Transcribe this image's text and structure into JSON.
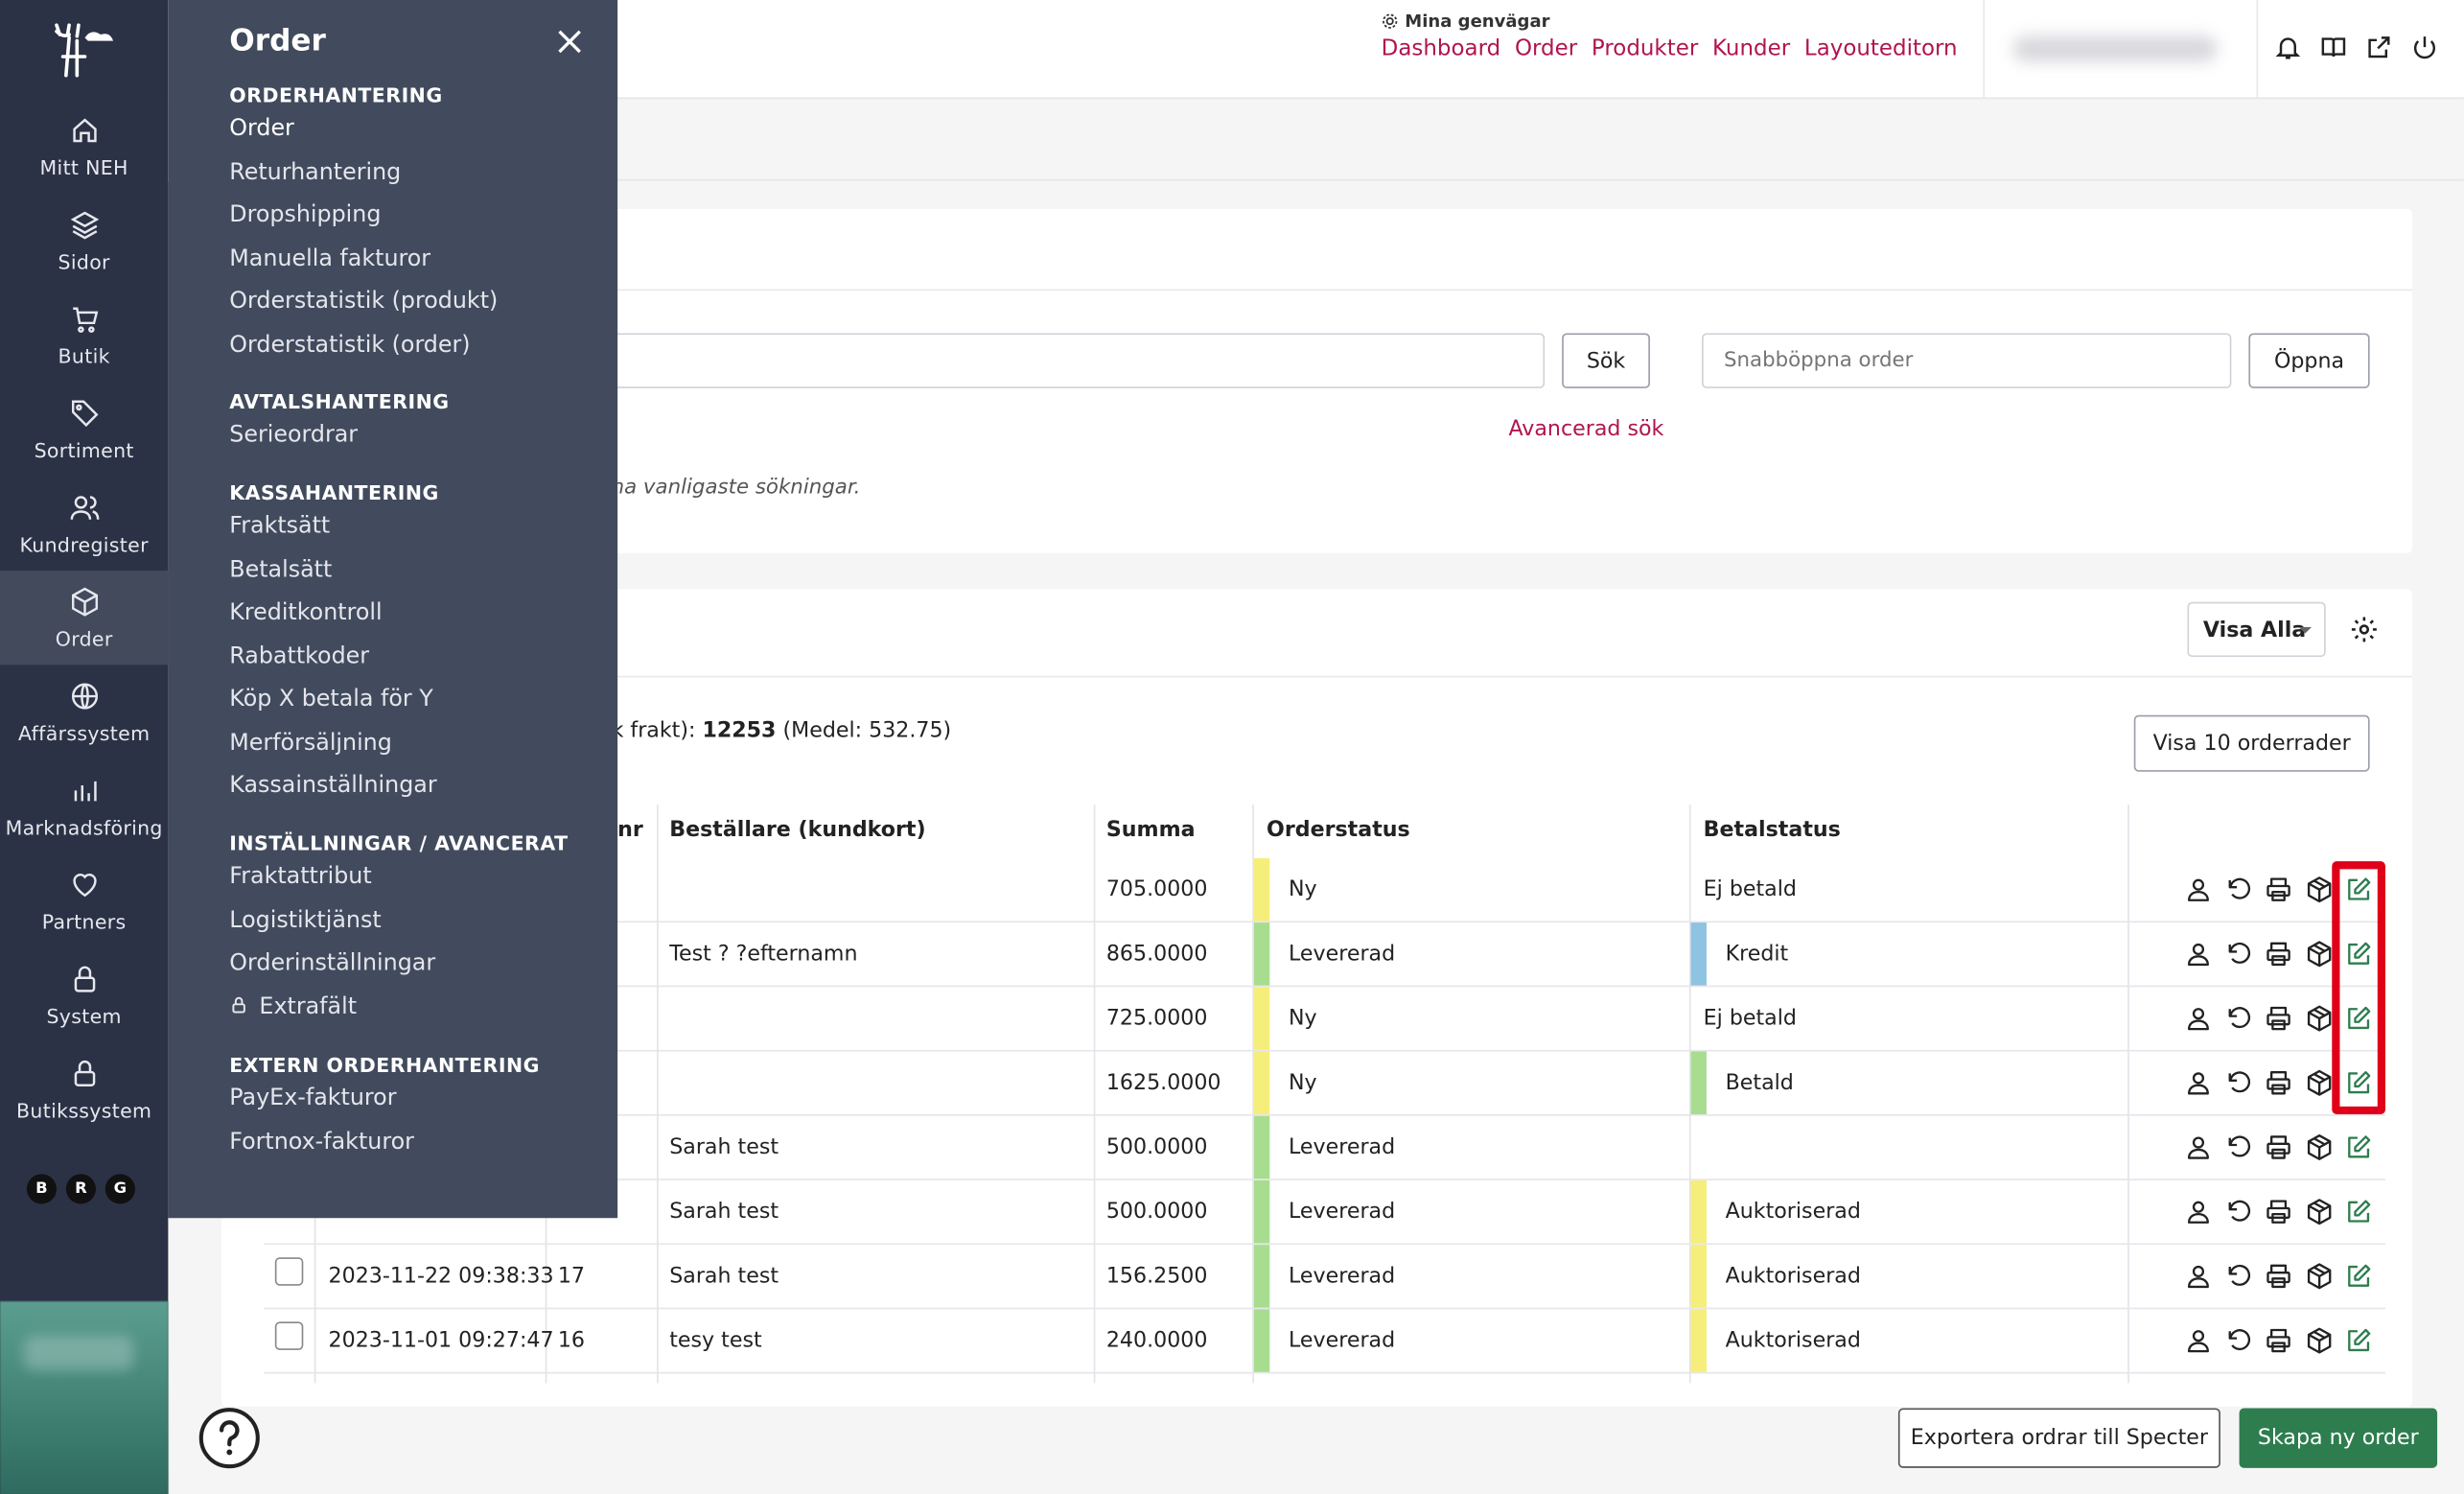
{
  "rail": {
    "items": [
      {
        "label": "Mitt NEH",
        "icon": "home-icon"
      },
      {
        "label": "Sidor",
        "icon": "layers-icon"
      },
      {
        "label": "Butik",
        "icon": "cart-icon"
      },
      {
        "label": "Sortiment",
        "icon": "tag-icon"
      },
      {
        "label": "Kundregister",
        "icon": "users-icon"
      },
      {
        "label": "Order",
        "icon": "box-icon"
      },
      {
        "label": "Affärssystem",
        "icon": "globe-icon"
      },
      {
        "label": "Marknadsföring",
        "icon": "bar-chart-icon"
      },
      {
        "label": "Partners",
        "icon": "heart-icon"
      },
      {
        "label": "System",
        "icon": "lock-icon"
      },
      {
        "label": "Butikssystem",
        "icon": "lock-icon"
      }
    ],
    "badges": [
      "B",
      "R",
      "G"
    ]
  },
  "topbar": {
    "shortcuts_title": "Mina genvägar",
    "links": [
      "Dashboard",
      "Order",
      "Produkter",
      "Kunder",
      "Layouteditorn"
    ],
    "link_color": "#b0154f"
  },
  "drawer": {
    "title": "Order",
    "sections": [
      {
        "heading": "ORDERHANTERING",
        "items": [
          "Order",
          "Returhantering",
          "Dropshipping",
          "Manuella fakturor",
          "Orderstatistik (produkt)",
          "Orderstatistik (order)"
        ]
      },
      {
        "heading": "AVTALSHANTERING",
        "items": [
          "Serieordrar"
        ]
      },
      {
        "heading": "KASSAHANTERING",
        "items": [
          "Fraktsätt",
          "Betalsätt",
          "Kreditkontroll",
          "Rabattkoder",
          "Köp X betala för Y",
          "Merförsäljning",
          "Kassainställningar"
        ]
      },
      {
        "heading": "INSTÄLLNINGAR / AVANCERAT",
        "items": [
          "Fraktattribut",
          "Logistiktjänst",
          "Orderinställningar",
          "Extrafält"
        ]
      },
      {
        "heading": "EXTERN ORDERHANTERING",
        "items": [
          "PayEx-fakturor",
          "Fortnox-fakturor"
        ]
      }
    ]
  },
  "search": {
    "search_button": "Sök",
    "quick_placeholder": "Snabböppna order",
    "open_button": "Öppna",
    "advanced_link": "Avancerad sök",
    "hint": "na vanligaste sökningar."
  },
  "list": {
    "filter": "Visa Alla",
    "summary_prefix": "k frakt): ",
    "summary_total": "12253",
    "summary_suffix": " (Medel: 532.75)",
    "show_rows_button": "Visa 10 orderrader",
    "headers": {
      "nr": "nr",
      "customer": "Beställare (kundkort)",
      "sum": "Summa",
      "order_status": "Orderstatus",
      "pay_status": "Betalstatus"
    },
    "rows": [
      {
        "date": "",
        "nr": "",
        "customer": "",
        "sum": "705.0000",
        "order_status": "Ny",
        "order_color": "#f6ee7a",
        "pay_status": "Ej betald",
        "pay_color": ""
      },
      {
        "date": "",
        "nr": "",
        "customer": "Test ? ?efternamn",
        "sum": "865.0000",
        "order_status": "Levererad",
        "order_color": "#a8dd8f",
        "pay_status": "Kredit",
        "pay_color": "#8ec3e2"
      },
      {
        "date": "",
        "nr": "",
        "customer": "",
        "sum": "725.0000",
        "order_status": "Ny",
        "order_color": "#f6ee7a",
        "pay_status": "Ej betald",
        "pay_color": ""
      },
      {
        "date": "",
        "nr": "",
        "customer": "",
        "sum": "1625.0000",
        "order_status": "Ny",
        "order_color": "#f6ee7a",
        "pay_status": "Betald",
        "pay_color": "#a8dd8f"
      },
      {
        "date": "",
        "nr": "",
        "customer": "Sarah test",
        "sum": "500.0000",
        "order_status": "Levererad",
        "order_color": "#a8dd8f",
        "pay_status": "",
        "pay_color": ""
      },
      {
        "date": "",
        "nr": "",
        "customer": "Sarah test",
        "sum": "500.0000",
        "order_status": "Levererad",
        "order_color": "#a8dd8f",
        "pay_status": "Auktoriserad",
        "pay_color": "#f6ee7a"
      },
      {
        "date": "2023-11-22 09:38:33",
        "nr": "17",
        "customer": "Sarah test",
        "sum": "156.2500",
        "order_status": "Levererad",
        "order_color": "#a8dd8f",
        "pay_status": "Auktoriserad",
        "pay_color": "#f6ee7a"
      },
      {
        "date": "2023-11-01 09:27:47",
        "nr": "16",
        "customer": "tesy test",
        "sum": "240.0000",
        "order_status": "Levererad",
        "order_color": "#a8dd8f",
        "pay_status": "Auktoriserad",
        "pay_color": "#f6ee7a"
      }
    ]
  },
  "footer": {
    "export_button": "Exportera ordrar till Specter",
    "create_button": "Skapa ny order",
    "create_color": "#2e7d4f"
  }
}
